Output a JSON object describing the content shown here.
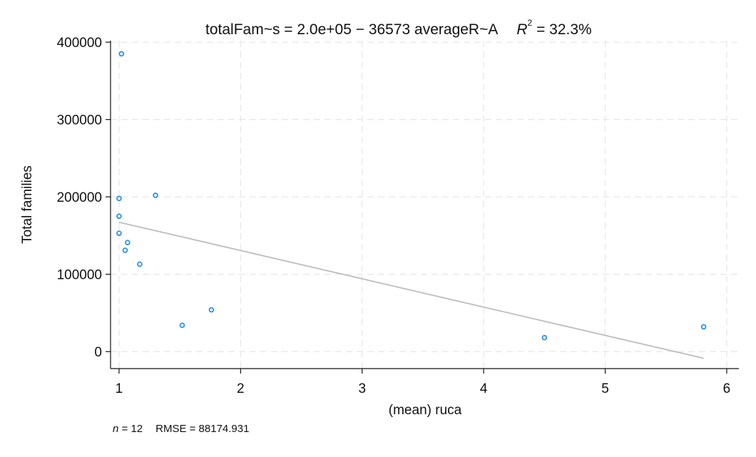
{
  "chart_data": {
    "type": "scatter",
    "title": "totalFam~s = 2.0e+05 − 36573 averageR~A",
    "r2_label": "R",
    "r2_exponent": "2",
    "r2_value": " = 32.3%",
    "xlabel": "(mean) ruca",
    "ylabel": "Total families",
    "xlim": [
      0.93,
      6.1
    ],
    "ylim": [
      -22000,
      402000
    ],
    "x_ticks": [
      1,
      2,
      3,
      4,
      5,
      6
    ],
    "y_ticks": [
      0,
      100000,
      200000,
      300000,
      400000
    ],
    "x_tick_labels": [
      "1",
      "2",
      "3",
      "4",
      "5",
      "6"
    ],
    "y_tick_labels": [
      "0",
      "100000",
      "200000",
      "300000",
      "400000"
    ],
    "grid": true,
    "points": [
      {
        "x": 1.02,
        "y": 385000
      },
      {
        "x": 1.3,
        "y": 202000
      },
      {
        "x": 1.0,
        "y": 198000
      },
      {
        "x": 1.0,
        "y": 175000
      },
      {
        "x": 1.0,
        "y": 153000
      },
      {
        "x": 1.07,
        "y": 141000
      },
      {
        "x": 1.05,
        "y": 131000
      },
      {
        "x": 1.17,
        "y": 113000
      },
      {
        "x": 1.76,
        "y": 54000
      },
      {
        "x": 1.52,
        "y": 34000
      },
      {
        "x": 4.5,
        "y": 18000
      },
      {
        "x": 5.81,
        "y": 32000
      }
    ],
    "fit_line": {
      "intercept": 203800,
      "slope": -36573,
      "x_start": 1.0,
      "x_end": 5.81
    },
    "marker_color": "#2a8fe6",
    "fit_color": "#bdbdbd",
    "footer": {
      "n_label": "n",
      "n_value": " = 12",
      "rmse": "RMSE =  88174.931"
    }
  }
}
